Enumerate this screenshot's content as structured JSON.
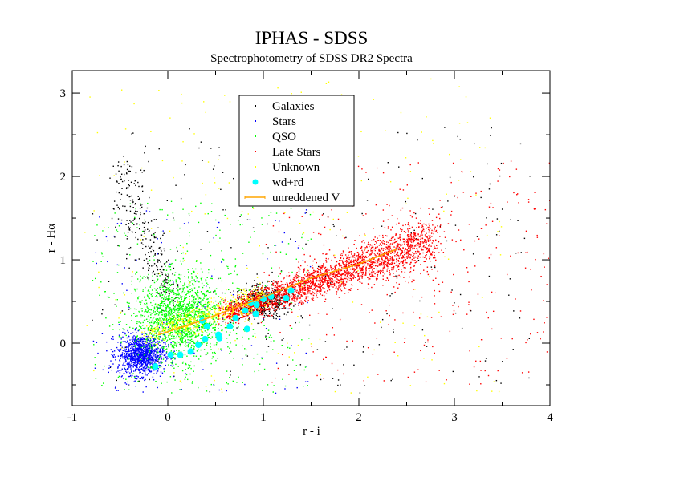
{
  "chart_data": {
    "type": "scatter",
    "title": "IPHAS - SDSS",
    "subtitle": "Spectrophotometry of SDSS DR2 Spectra",
    "xlabel": "r - i",
    "ylabel": "r - Hα",
    "xlim": [
      -1,
      4
    ],
    "ylim": [
      -0.75,
      3.27
    ],
    "xticks": [
      -1,
      0,
      1,
      2,
      3,
      4
    ],
    "yticks": [
      0,
      1,
      2,
      3
    ],
    "xtick_labels": [
      "-1",
      "0",
      "1",
      "2",
      "3",
      "4"
    ],
    "ytick_labels": [
      "0",
      "1",
      "2",
      "3"
    ],
    "legend_placement": "top-center",
    "series": [
      {
        "name": "Galaxies",
        "color": "#000000",
        "marker": "dot",
        "clusters": [
          {
            "kind": "gauss",
            "center": [
              1.0,
              0.5
            ],
            "sd": [
              0.15,
              0.1
            ],
            "n": 500
          },
          {
            "kind": "band",
            "from": [
              0.05,
              0.5
            ],
            "to": [
              -0.5,
              2.0
            ],
            "width": 0.12,
            "n": 260
          },
          {
            "kind": "uniform",
            "xr": [
              -0.8,
              3.8
            ],
            "yr": [
              -0.6,
              2.6
            ],
            "n": 250
          }
        ]
      },
      {
        "name": "Stars",
        "color": "#0000ff",
        "marker": "dot",
        "clusters": [
          {
            "kind": "gauss",
            "center": [
              -0.28,
              -0.14
            ],
            "sd": [
              0.12,
              0.12
            ],
            "n": 1100
          },
          {
            "kind": "uniform",
            "xr": [
              -0.8,
              1.5
            ],
            "yr": [
              -0.6,
              1.6
            ],
            "n": 120
          }
        ]
      },
      {
        "name": "QSO",
        "color": "#00ff00",
        "marker": "dot",
        "clusters": [
          {
            "kind": "gauss",
            "center": [
              0.12,
              0.3
            ],
            "sd": [
              0.22,
              0.25
            ],
            "n": 1500
          },
          {
            "kind": "uniform",
            "xr": [
              -0.8,
              1.5
            ],
            "yr": [
              -0.6,
              1.7
            ],
            "n": 350
          }
        ]
      },
      {
        "name": "Late Stars",
        "color": "#ff0000",
        "marker": "dot",
        "clusters": [
          {
            "kind": "band",
            "from": [
              0.6,
              0.35
            ],
            "to": [
              2.8,
              1.25
            ],
            "width": 0.09,
            "n": 2600
          },
          {
            "kind": "uniform",
            "xr": [
              1.0,
              4.0
            ],
            "yr": [
              -0.5,
              2.2
            ],
            "n": 320
          }
        ]
      },
      {
        "name": "Unknown",
        "color": "#ffff00",
        "marker": "dot",
        "clusters": [
          {
            "kind": "band",
            "from": [
              -0.2,
              0.1
            ],
            "to": [
              1.0,
              0.55
            ],
            "width": 0.06,
            "n": 500
          },
          {
            "kind": "uniform",
            "xr": [
              -0.9,
              3.5
            ],
            "yr": [
              -0.6,
              3.2
            ],
            "n": 200
          }
        ]
      },
      {
        "name": "wd+rd",
        "color": "#00ffff",
        "marker": "circle",
        "points": [
          [
            -0.13,
            -0.28
          ],
          [
            0.03,
            -0.14
          ],
          [
            0.13,
            -0.14
          ],
          [
            0.24,
            -0.1
          ],
          [
            0.32,
            -0.02
          ],
          [
            0.39,
            0.05
          ],
          [
            0.41,
            0.2
          ],
          [
            0.36,
            0.27
          ],
          [
            0.53,
            0.1
          ],
          [
            0.54,
            0.06
          ],
          [
            0.65,
            0.2
          ],
          [
            0.71,
            0.3
          ],
          [
            0.81,
            0.39
          ],
          [
            0.83,
            0.17
          ],
          [
            0.87,
            0.48
          ],
          [
            0.93,
            0.46
          ],
          [
            0.92,
            0.35
          ],
          [
            1.0,
            0.53
          ],
          [
            1.08,
            0.56
          ],
          [
            1.24,
            0.54
          ],
          [
            1.29,
            0.63
          ]
        ]
      },
      {
        "name": "unreddened V",
        "color": "#ffa500",
        "marker": "line",
        "points": [
          [
            -0.1,
            0.1
          ],
          [
            0.3,
            0.25
          ],
          [
            0.7,
            0.42
          ],
          [
            1.0,
            0.55
          ],
          [
            1.5,
            0.78
          ],
          [
            2.0,
            0.95
          ],
          [
            2.4,
            1.13
          ]
        ]
      }
    ]
  }
}
